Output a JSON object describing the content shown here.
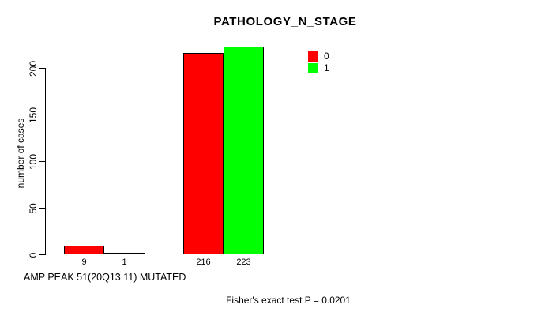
{
  "chart_data": {
    "type": "bar",
    "title": "PATHOLOGY_N_STAGE",
    "ylabel": "number of cases",
    "xlabel": "AMP PEAK 51(20Q13.11) MUTATED",
    "annotation": "Fisher's exact test P = 0.0201",
    "yticks": [
      0,
      50,
      100,
      150,
      200
    ],
    "ylim": [
      0,
      235
    ],
    "grid": false,
    "legend_position": "top-right",
    "series": [
      {
        "name": "0",
        "color": "#ff0000",
        "values": [
          9,
          216
        ]
      },
      {
        "name": "1",
        "color": "#00ff00",
        "values": [
          1,
          223
        ]
      }
    ],
    "bar_labels": [
      [
        "9",
        "1"
      ],
      [
        "216",
        "223"
      ]
    ],
    "background": "#ffffff",
    "axis_color": "#000000"
  }
}
